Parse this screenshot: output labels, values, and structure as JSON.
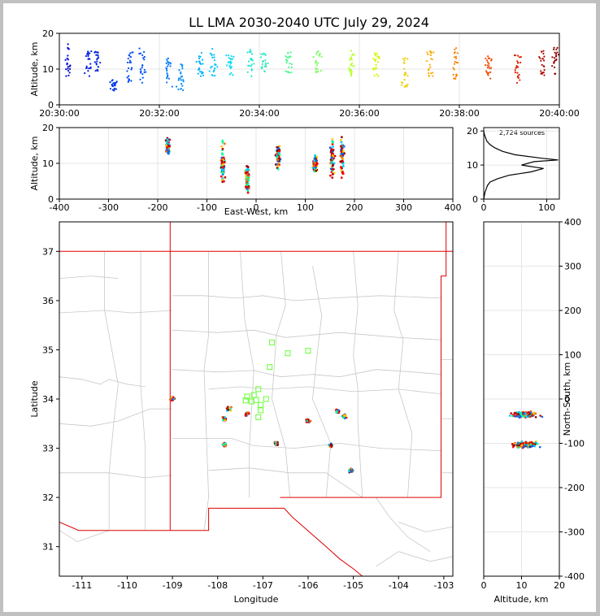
{
  "figure": {
    "title": "LL LMA 2030-2040 UTC July 29, 2024",
    "background": "#ffffff",
    "border_color": "#c0c0c0"
  },
  "chart_data": [
    {
      "id": "time-height",
      "type": "scatter",
      "xlabel": "",
      "ylabel": "Altitude, km",
      "xlim": [
        "20:30:00",
        "20:40:00"
      ],
      "ylim": [
        0,
        20
      ],
      "xticks": [
        "20:30:00",
        "20:32:00",
        "20:34:00",
        "20:36:00",
        "20:38:00",
        "20:40:00"
      ],
      "yticks": [
        0,
        10,
        20
      ],
      "grid": true,
      "color_by": "time",
      "colormap": "rainbow (blue to red)",
      "clusters": [
        {
          "t": "20:30:10",
          "alt": [
            8,
            17
          ]
        },
        {
          "t": "20:30:35",
          "alt": [
            8,
            15
          ]
        },
        {
          "t": "20:30:45",
          "alt": [
            9,
            15
          ]
        },
        {
          "t": "20:31:05",
          "alt": [
            4,
            7
          ]
        },
        {
          "t": "20:31:25",
          "alt": [
            6,
            15
          ]
        },
        {
          "t": "20:31:40",
          "alt": [
            6,
            16
          ]
        },
        {
          "t": "20:32:10",
          "alt": [
            5,
            13
          ]
        },
        {
          "t": "20:32:25",
          "alt": [
            4,
            12
          ]
        },
        {
          "t": "20:32:50",
          "alt": [
            8,
            15
          ]
        },
        {
          "t": "20:33:05",
          "alt": [
            8,
            16
          ]
        },
        {
          "t": "20:33:25",
          "alt": [
            8,
            14
          ]
        },
        {
          "t": "20:33:50",
          "alt": [
            8,
            16
          ]
        },
        {
          "t": "20:34:05",
          "alt": [
            9,
            15
          ]
        },
        {
          "t": "20:34:35",
          "alt": [
            9,
            15
          ]
        },
        {
          "t": "20:35:10",
          "alt": [
            9,
            15
          ]
        },
        {
          "t": "20:35:50",
          "alt": [
            8,
            16
          ]
        },
        {
          "t": "20:36:20",
          "alt": [
            8,
            15
          ]
        },
        {
          "t": "20:36:55",
          "alt": [
            5,
            14
          ]
        },
        {
          "t": "20:37:25",
          "alt": [
            8,
            15
          ]
        },
        {
          "t": "20:37:55",
          "alt": [
            7,
            16
          ]
        },
        {
          "t": "20:38:35",
          "alt": [
            7,
            14
          ]
        },
        {
          "t": "20:39:10",
          "alt": [
            6,
            15
          ]
        },
        {
          "t": "20:39:40",
          "alt": [
            8,
            16
          ]
        },
        {
          "t": "20:39:55",
          "alt": [
            8,
            16
          ]
        }
      ]
    },
    {
      "id": "east-west-height",
      "type": "scatter",
      "xlabel": "East-West, km",
      "ylabel": "Altitude, km",
      "xlim": [
        -400,
        400
      ],
      "ylim": [
        0,
        20
      ],
      "xticks": [
        -400,
        -300,
        -200,
        -100,
        0,
        100,
        200,
        300,
        400
      ],
      "yticks": [
        0,
        10,
        20
      ],
      "grid": true,
      "clusters": [
        {
          "x": -180,
          "alt": [
            11,
            18
          ]
        },
        {
          "x": -68,
          "alt": [
            1,
            18
          ]
        },
        {
          "x": -18,
          "alt": [
            1,
            11
          ]
        },
        {
          "x": 45,
          "alt": [
            7,
            16
          ]
        },
        {
          "x": 120,
          "alt": [
            7,
            13
          ]
        },
        {
          "x": 155,
          "alt": [
            3,
            20
          ]
        },
        {
          "x": 175,
          "alt": [
            3,
            20
          ]
        }
      ]
    },
    {
      "id": "altitude-histogram",
      "type": "line",
      "annotation": "2,724 sources",
      "xlabel": "",
      "ylabel": "",
      "xlim": [
        0,
        120
      ],
      "ylim": [
        0,
        21
      ],
      "xticks": [
        0,
        100
      ],
      "yticks": [
        0,
        10,
        20
      ],
      "grid": true,
      "profile": [
        {
          "alt": 0,
          "count": 0
        },
        {
          "alt": 2,
          "count": 2
        },
        {
          "alt": 4,
          "count": 6
        },
        {
          "alt": 5,
          "count": 10
        },
        {
          "alt": 6,
          "count": 22
        },
        {
          "alt": 7,
          "count": 40
        },
        {
          "alt": 8,
          "count": 75
        },
        {
          "alt": 9,
          "count": 95
        },
        {
          "alt": 10,
          "count": 60
        },
        {
          "alt": 11,
          "count": 80
        },
        {
          "alt": 11.5,
          "count": 118
        },
        {
          "alt": 12,
          "count": 92
        },
        {
          "alt": 13,
          "count": 50
        },
        {
          "alt": 14,
          "count": 30
        },
        {
          "alt": 15,
          "count": 18
        },
        {
          "alt": 16,
          "count": 10
        },
        {
          "alt": 17,
          "count": 5
        },
        {
          "alt": 18,
          "count": 3
        },
        {
          "alt": 19,
          "count": 1
        },
        {
          "alt": 20,
          "count": 0
        }
      ]
    },
    {
      "id": "plan-view",
      "type": "scatter",
      "xlabel": "Longitude",
      "ylabel": "Latitude",
      "xlim": [
        -111.5,
        -102.8
      ],
      "ylim": [
        30.4,
        37.6
      ],
      "xticks": [
        -111,
        -110,
        -109,
        -108,
        -107,
        -106,
        -105,
        -104,
        -103
      ],
      "yticks": [
        31,
        32,
        33,
        34,
        35,
        36,
        37
      ],
      "grid": false,
      "station_marker": "open green squares",
      "station_color": "#66ff33",
      "stations": [
        {
          "lon": -106.8,
          "lat": 35.15
        },
        {
          "lon": -106.45,
          "lat": 34.93
        },
        {
          "lon": -106.0,
          "lat": 34.98
        },
        {
          "lon": -106.85,
          "lat": 34.65
        },
        {
          "lon": -107.1,
          "lat": 34.2
        },
        {
          "lon": -107.2,
          "lat": 34.08
        },
        {
          "lon": -107.35,
          "lat": 34.05
        },
        {
          "lon": -107.15,
          "lat": 33.98
        },
        {
          "lon": -107.25,
          "lat": 33.95
        },
        {
          "lon": -107.38,
          "lat": 33.97
        },
        {
          "lon": -106.93,
          "lat": 34.0
        },
        {
          "lon": -107.05,
          "lat": 33.88
        },
        {
          "lon": -107.05,
          "lat": 33.77
        },
        {
          "lon": -107.1,
          "lat": 33.63
        }
      ],
      "clusters": [
        {
          "lon": -109.0,
          "lat": 34.0
        },
        {
          "lon": -107.85,
          "lat": 33.6
        },
        {
          "lon": -107.75,
          "lat": 33.8
        },
        {
          "lon": -107.85,
          "lat": 33.07
        },
        {
          "lon": -107.35,
          "lat": 33.7
        },
        {
          "lon": -106.7,
          "lat": 33.1
        },
        {
          "lon": -106.0,
          "lat": 33.55
        },
        {
          "lon": -105.5,
          "lat": 33.05
        },
        {
          "lon": -105.35,
          "lat": 33.75
        },
        {
          "lon": -105.2,
          "lat": 33.65
        },
        {
          "lon": -105.05,
          "lat": 32.55
        }
      ]
    },
    {
      "id": "north-south-height",
      "type": "scatter",
      "xlabel": "Altitude, km",
      "ylabel": "North-South, km",
      "xlim": [
        0,
        20
      ],
      "ylim": [
        -400,
        400
      ],
      "xticks": [
        0,
        10,
        20
      ],
      "yticks": [
        -400,
        -300,
        -200,
        -100,
        0,
        100,
        200,
        300,
        400
      ],
      "grid": true,
      "clusters": [
        {
          "ns": -35,
          "alt": [
            0,
            20
          ]
        },
        {
          "ns": -103,
          "alt": [
            0,
            20
          ]
        }
      ]
    }
  ]
}
